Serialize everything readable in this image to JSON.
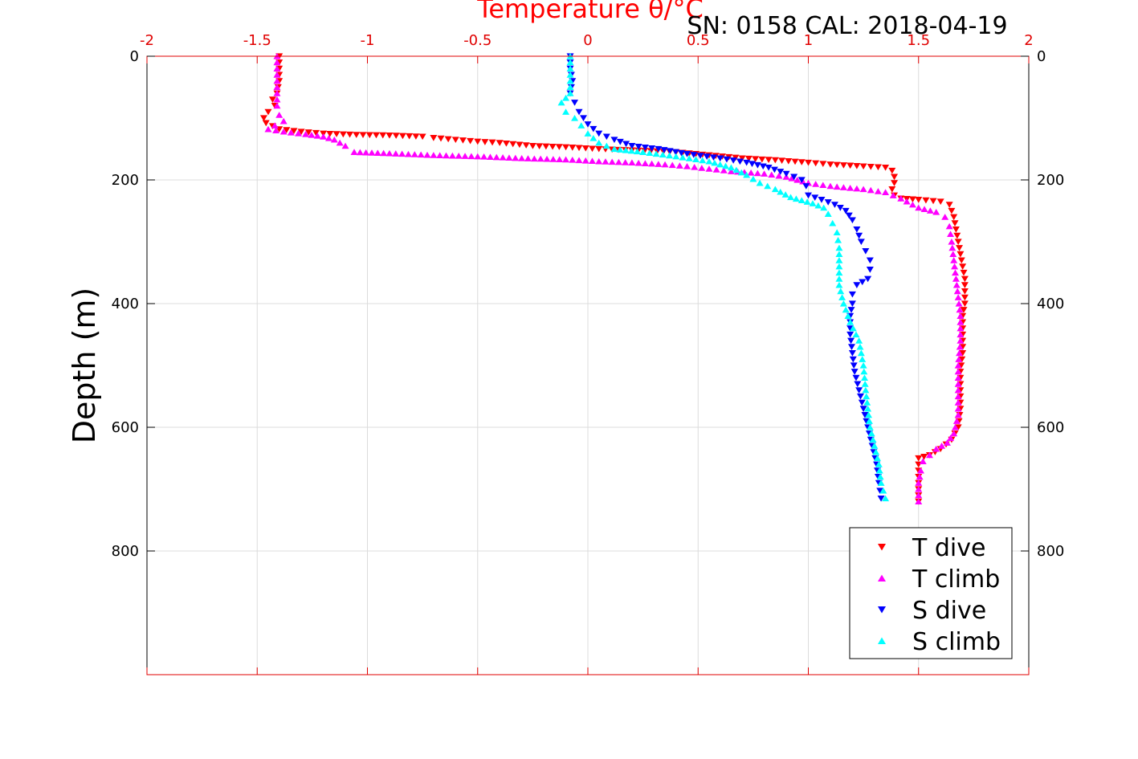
{
  "chart_data": {
    "type": "scatter",
    "title": "Temperature θ/°C",
    "subtitle": "SN: 0158  CAL: 2018-04-19",
    "ylabel": "Depth (m)",
    "xlim": [
      -2,
      2
    ],
    "ylim": [
      0,
      1000
    ],
    "y_reversed": true,
    "grid": true,
    "legend_position": "bottom-right",
    "x_ticks": [
      "-2",
      "-1.5",
      "-1",
      "-0.5",
      "0",
      "0.5",
      "1",
      "1.5",
      "2"
    ],
    "y_ticks": [
      "0",
      "200",
      "400",
      "600",
      "800"
    ],
    "colors": {
      "axis": "#e00000",
      "grid": "#dcdcdc",
      "frame": "#000000"
    },
    "series": [
      {
        "name": "T dive",
        "marker": "triangle-down",
        "color": "#ff0000",
        "points": [
          [
            -1.4,
            0
          ],
          [
            -1.4,
            20
          ],
          [
            -1.4,
            40
          ],
          [
            -1.41,
            60
          ],
          [
            -1.43,
            70
          ],
          [
            -1.42,
            80
          ],
          [
            -1.45,
            90
          ],
          [
            -1.47,
            100
          ],
          [
            -1.46,
            108
          ],
          [
            -1.43,
            113
          ],
          [
            -1.4,
            118
          ],
          [
            -1.3,
            122
          ],
          [
            -1.2,
            125
          ],
          [
            -1.05,
            127
          ],
          [
            -0.9,
            128
          ],
          [
            -0.75,
            130
          ],
          [
            -0.7,
            132
          ],
          [
            -0.6,
            135
          ],
          [
            -0.5,
            138
          ],
          [
            -0.4,
            140
          ],
          [
            -0.25,
            145
          ],
          [
            -0.1,
            147
          ],
          [
            0.05,
            150
          ],
          [
            0.2,
            152
          ],
          [
            0.4,
            155
          ],
          [
            0.55,
            160
          ],
          [
            0.7,
            165
          ],
          [
            0.85,
            168
          ],
          [
            1.0,
            172
          ],
          [
            1.1,
            175
          ],
          [
            1.25,
            178
          ],
          [
            1.35,
            180
          ],
          [
            1.38,
            185
          ],
          [
            1.39,
            195
          ],
          [
            1.39,
            205
          ],
          [
            1.38,
            215
          ],
          [
            1.39,
            225
          ],
          [
            1.42,
            230
          ],
          [
            1.5,
            232
          ],
          [
            1.6,
            235
          ],
          [
            1.64,
            240
          ],
          [
            1.65,
            250
          ],
          [
            1.66,
            260
          ],
          [
            1.67,
            280
          ],
          [
            1.68,
            300
          ],
          [
            1.69,
            320
          ],
          [
            1.7,
            340
          ],
          [
            1.71,
            360
          ],
          [
            1.71,
            380
          ],
          [
            1.71,
            400
          ],
          [
            1.7,
            420
          ],
          [
            1.7,
            450
          ],
          [
            1.7,
            480
          ],
          [
            1.69,
            510
          ],
          [
            1.69,
            540
          ],
          [
            1.69,
            570
          ],
          [
            1.68,
            600
          ],
          [
            1.65,
            620
          ],
          [
            1.6,
            635
          ],
          [
            1.55,
            645
          ],
          [
            1.5,
            650
          ],
          [
            1.5,
            660
          ],
          [
            1.5,
            680
          ],
          [
            1.5,
            700
          ],
          [
            1.5,
            720
          ]
        ]
      },
      {
        "name": "T climb",
        "marker": "triangle-up",
        "color": "#ff00ff",
        "points": [
          [
            -1.41,
            0
          ],
          [
            -1.41,
            20
          ],
          [
            -1.41,
            40
          ],
          [
            -1.41,
            60
          ],
          [
            -1.41,
            80
          ],
          [
            -1.4,
            95
          ],
          [
            -1.38,
            105
          ],
          [
            -1.42,
            112
          ],
          [
            -1.45,
            118
          ],
          [
            -1.38,
            122
          ],
          [
            -1.28,
            126
          ],
          [
            -1.2,
            130
          ],
          [
            -1.15,
            135
          ],
          [
            -1.1,
            145
          ],
          [
            -1.06,
            155
          ],
          [
            -0.9,
            157
          ],
          [
            -0.7,
            160
          ],
          [
            -0.5,
            162
          ],
          [
            -0.3,
            165
          ],
          [
            -0.1,
            167
          ],
          [
            0.05,
            170
          ],
          [
            0.2,
            172
          ],
          [
            0.35,
            175
          ],
          [
            0.45,
            178
          ],
          [
            0.55,
            182
          ],
          [
            0.65,
            186
          ],
          [
            0.8,
            190
          ],
          [
            0.9,
            195
          ],
          [
            1.0,
            205
          ],
          [
            1.1,
            210
          ],
          [
            1.25,
            215
          ],
          [
            1.35,
            220
          ],
          [
            1.42,
            230
          ],
          [
            1.5,
            245
          ],
          [
            1.58,
            252
          ],
          [
            1.62,
            260
          ],
          [
            1.64,
            275
          ],
          [
            1.65,
            300
          ],
          [
            1.66,
            330
          ],
          [
            1.67,
            360
          ],
          [
            1.68,
            390
          ],
          [
            1.69,
            420
          ],
          [
            1.69,
            460
          ],
          [
            1.68,
            500
          ],
          [
            1.68,
            540
          ],
          [
            1.68,
            580
          ],
          [
            1.66,
            610
          ],
          [
            1.63,
            625
          ],
          [
            1.58,
            635
          ],
          [
            1.55,
            645
          ],
          [
            1.52,
            655
          ],
          [
            1.51,
            670
          ],
          [
            1.5,
            690
          ],
          [
            1.5,
            710
          ],
          [
            1.5,
            720
          ]
        ]
      },
      {
        "name": "S dive",
        "marker": "triangle-down",
        "color": "#0000ff",
        "points": [
          [
            -0.08,
            0
          ],
          [
            -0.08,
            20
          ],
          [
            -0.07,
            40
          ],
          [
            -0.08,
            60
          ],
          [
            -0.06,
            75
          ],
          [
            -0.04,
            90
          ],
          [
            0.0,
            110
          ],
          [
            0.05,
            125
          ],
          [
            0.12,
            135
          ],
          [
            0.2,
            145
          ],
          [
            0.32,
            150
          ],
          [
            0.45,
            158
          ],
          [
            0.6,
            165
          ],
          [
            0.72,
            172
          ],
          [
            0.82,
            180
          ],
          [
            0.9,
            190
          ],
          [
            0.97,
            200
          ],
          [
            0.99,
            210
          ],
          [
            1.0,
            225
          ],
          [
            1.06,
            232
          ],
          [
            1.12,
            240
          ],
          [
            1.17,
            250
          ],
          [
            1.2,
            265
          ],
          [
            1.22,
            280
          ],
          [
            1.24,
            300
          ],
          [
            1.26,
            315
          ],
          [
            1.28,
            330
          ],
          [
            1.28,
            345
          ],
          [
            1.27,
            360
          ],
          [
            1.22,
            370
          ],
          [
            1.2,
            385
          ],
          [
            1.2,
            400
          ],
          [
            1.19,
            420
          ],
          [
            1.19,
            450
          ],
          [
            1.2,
            480
          ],
          [
            1.21,
            510
          ],
          [
            1.23,
            540
          ],
          [
            1.25,
            570
          ],
          [
            1.27,
            600
          ],
          [
            1.29,
            630
          ],
          [
            1.31,
            660
          ],
          [
            1.32,
            690
          ],
          [
            1.33,
            715
          ]
        ]
      },
      {
        "name": "S climb",
        "marker": "triangle-up",
        "color": "#00ffff",
        "points": [
          [
            -0.08,
            0
          ],
          [
            -0.08,
            20
          ],
          [
            -0.08,
            40
          ],
          [
            -0.08,
            60
          ],
          [
            -0.12,
            75
          ],
          [
            -0.1,
            90
          ],
          [
            -0.06,
            100
          ],
          [
            -0.03,
            112
          ],
          [
            0.0,
            125
          ],
          [
            0.05,
            140
          ],
          [
            0.12,
            150
          ],
          [
            0.25,
            155
          ],
          [
            0.4,
            162
          ],
          [
            0.55,
            170
          ],
          [
            0.65,
            180
          ],
          [
            0.72,
            192
          ],
          [
            0.78,
            205
          ],
          [
            0.85,
            215
          ],
          [
            0.92,
            228
          ],
          [
            1.02,
            238
          ],
          [
            1.07,
            245
          ],
          [
            1.09,
            255
          ],
          [
            1.11,
            270
          ],
          [
            1.13,
            285
          ],
          [
            1.14,
            310
          ],
          [
            1.14,
            340
          ],
          [
            1.14,
            370
          ],
          [
            1.16,
            400
          ],
          [
            1.19,
            430
          ],
          [
            1.23,
            460
          ],
          [
            1.25,
            500
          ],
          [
            1.26,
            540
          ],
          [
            1.27,
            570
          ],
          [
            1.28,
            600
          ],
          [
            1.3,
            630
          ],
          [
            1.32,
            660
          ],
          [
            1.33,
            690
          ],
          [
            1.35,
            715
          ]
        ]
      }
    ]
  }
}
